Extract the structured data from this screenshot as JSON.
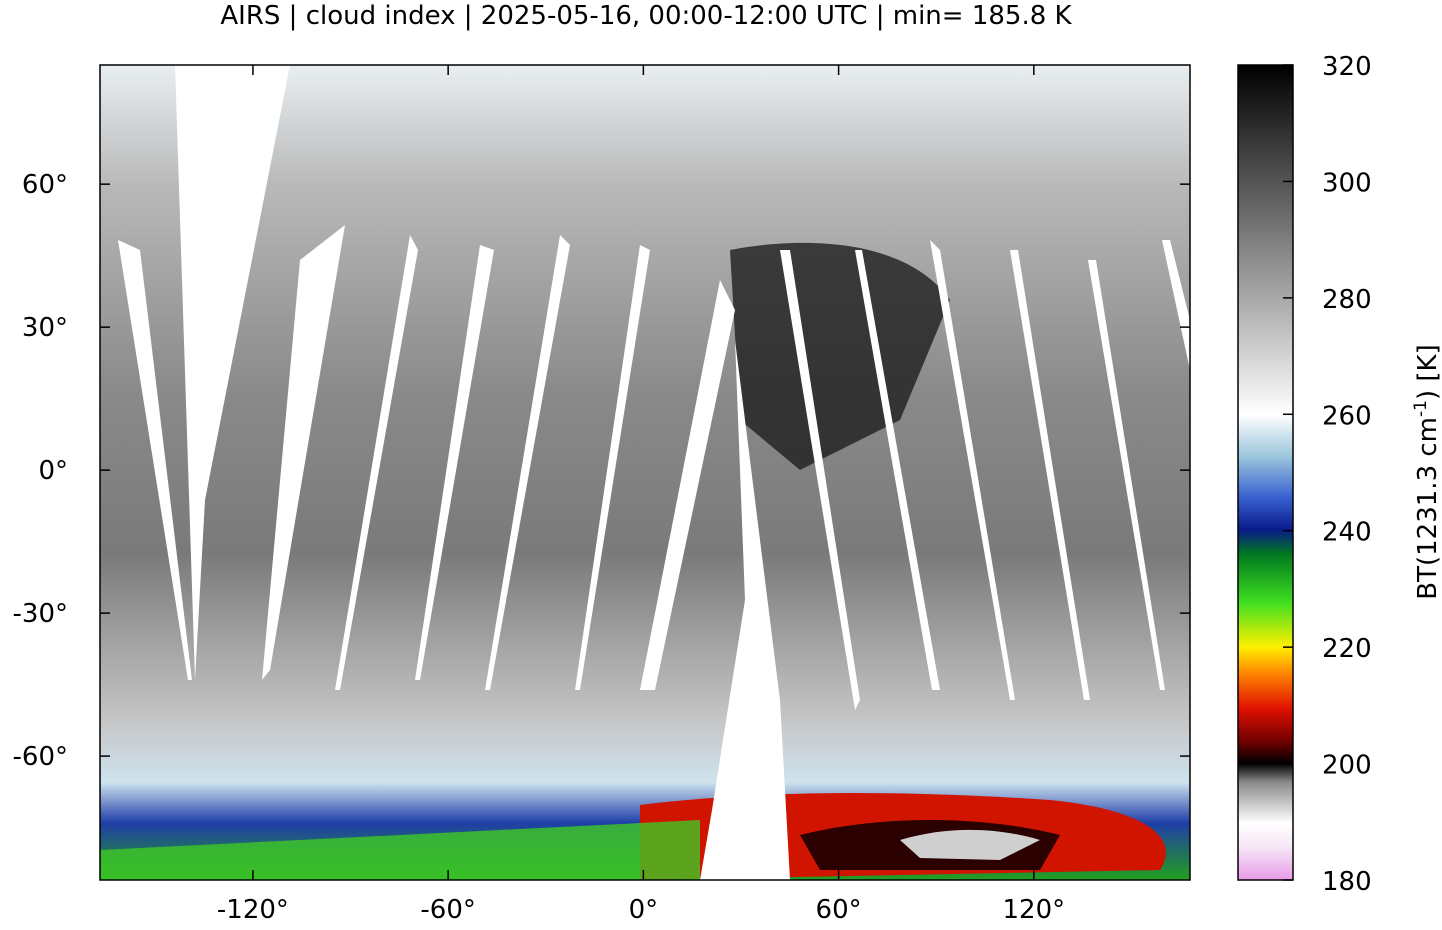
{
  "title": "AIRS | cloud index | 2025-05-16, 00:00-12:00 UTC | min= 185.8 K",
  "map": {
    "lon_range": [
      -167,
      168
    ],
    "lat_range": [
      -86,
      85
    ],
    "lon_ticks": [
      {
        "value": -120,
        "label": "-120°"
      },
      {
        "value": -60,
        "label": "-60°"
      },
      {
        "value": 0,
        "label": "0°"
      },
      {
        "value": 60,
        "label": "60°"
      },
      {
        "value": 120,
        "label": "120°"
      }
    ],
    "lat_ticks": [
      {
        "value": 60,
        "label": "60°"
      },
      {
        "value": 30,
        "label": "30°"
      },
      {
        "value": 0,
        "label": "0°"
      },
      {
        "value": -30,
        "label": "-30°"
      },
      {
        "value": -60,
        "label": "-60°"
      }
    ]
  },
  "colorbar": {
    "range": [
      180,
      320
    ],
    "ticks": [
      180,
      200,
      220,
      240,
      260,
      280,
      300,
      320
    ],
    "label_start": "BT(1231.3 cm",
    "label_sup": "-1",
    "label_end": ") [K]"
  }
}
